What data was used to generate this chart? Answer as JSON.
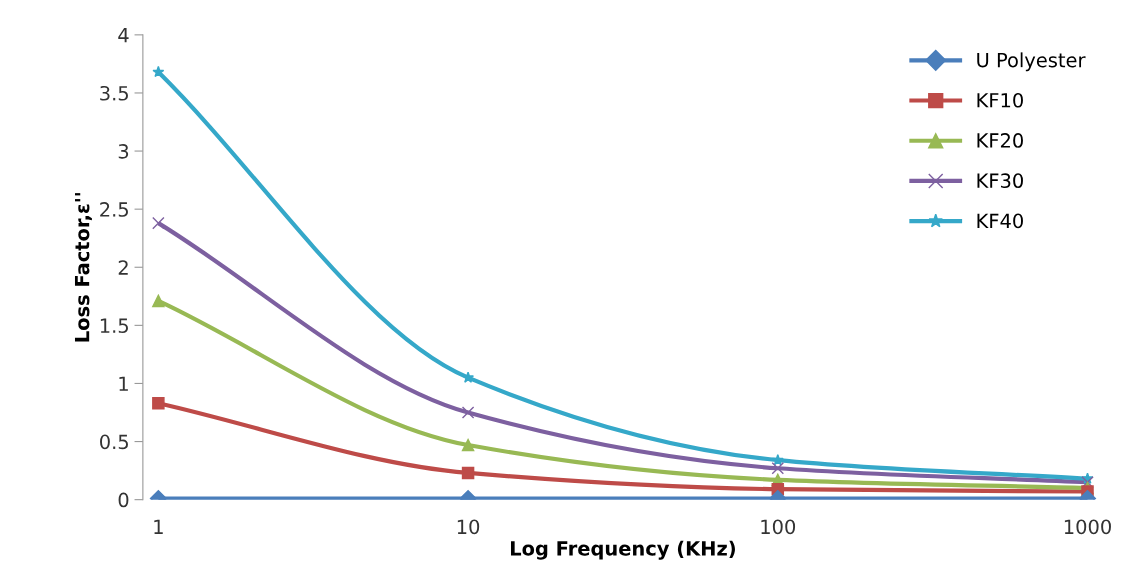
{
  "chart_data": {
    "type": "line",
    "xlabel": "Log Frequency (KHz)",
    "ylabel": "Loss Factor,ε''",
    "categories": [
      "1",
      "10",
      "100",
      "1000"
    ],
    "ylim": [
      0,
      4
    ],
    "yticks": [
      0,
      0.5,
      1,
      1.5,
      2,
      2.5,
      3,
      3.5,
      4
    ],
    "grid": false,
    "legend": "top right",
    "line_style": "solid",
    "series": [
      {
        "name": "U Polyester",
        "color": "#4a7ebb",
        "marker": "diamond",
        "values": [
          0.01,
          0.01,
          0.01,
          0.01
        ]
      },
      {
        "name": "KF10",
        "color": "#be4b48",
        "marker": "square",
        "values": [
          0.83,
          0.23,
          0.09,
          0.07
        ]
      },
      {
        "name": "KF20",
        "color": "#98b954",
        "marker": "triangle",
        "values": [
          1.71,
          0.47,
          0.17,
          0.1
        ]
      },
      {
        "name": "KF30",
        "color": "#7d60a0",
        "marker": "cross",
        "values": [
          2.38,
          0.75,
          0.27,
          0.15
        ]
      },
      {
        "name": "KF40",
        "color": "#35a8c9",
        "marker": "star",
        "values": [
          3.68,
          1.05,
          0.34,
          0.18
        ]
      }
    ]
  }
}
